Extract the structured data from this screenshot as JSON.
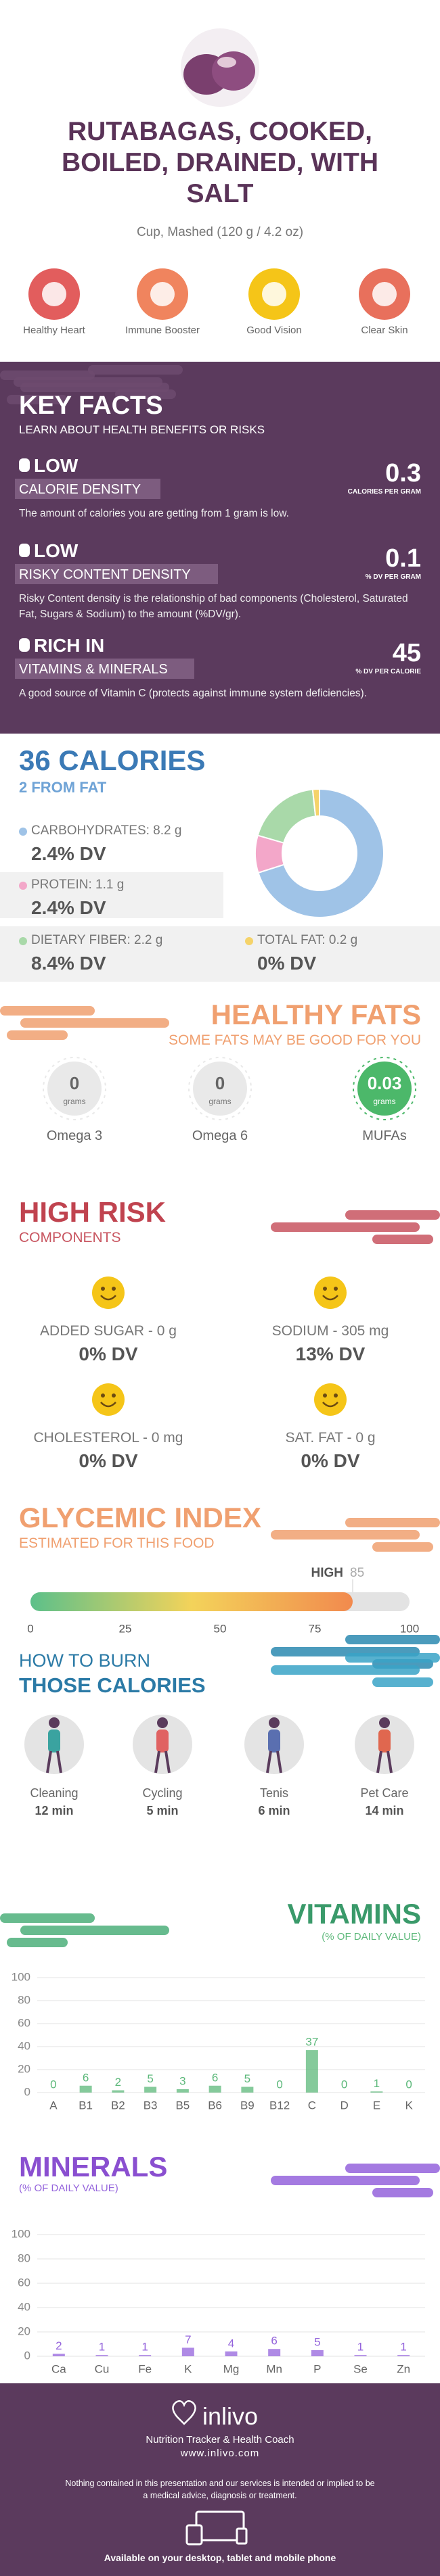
{
  "header": {
    "title": "RUTABAGAS, COOKED, BOILED, DRAINED, WITH SALT",
    "serving": "Cup, Mashed (120 g / 4.2 oz)"
  },
  "benefits": [
    "Healthy Heart",
    "Immune Booster",
    "Good Vision",
    "Clear Skin"
  ],
  "key_facts": {
    "title": "KEY FACTS",
    "subtitle": "LEARN ABOUT HEALTH BENEFITS OR RISKS",
    "items": [
      {
        "level": "LOW",
        "name": "CALORIE DENSITY",
        "value": 0.3,
        "unit": "CALORIES PER GRAM",
        "text": "The amount of calories you are getting from 1 gram is low."
      },
      {
        "level": "LOW",
        "name": "RISKY CONTENT DENSITY",
        "value": 0.1,
        "unit": "% DV PER GRAM",
        "text": "Risky Content density is the relationship of bad components (Cholesterol, Saturated Fat, Sugars & Sodium) to the amount (%DV/gr)."
      },
      {
        "level": "RICH IN",
        "name": "VITAMINS & MINERALS",
        "value": 45,
        "unit": "% DV PER CALORIE",
        "text": "A good source of Vitamin C (protects against immune system deficiencies)."
      }
    ]
  },
  "calories": {
    "title": "36 CALORIES",
    "subtitle": "2 FROM FAT",
    "type": "donut",
    "items": [
      {
        "label": "CARBOHYDRATES: 8.2 g",
        "value": 8.2,
        "dv": "2.4% DV",
        "color": "#9fc3e7"
      },
      {
        "label": "PROTEIN: 1.1 g",
        "value": 1.1,
        "dv": "2.4% DV",
        "color": "#f3a7c9"
      },
      {
        "label": "DIETARY FIBER: 2.2 g",
        "value": 2.2,
        "dv": "8.4% DV",
        "color": "#a9d9a9"
      },
      {
        "label": "TOTAL FAT: 0.2 g",
        "value": 0.2,
        "dv": "0% DV",
        "color": "#f5d36a"
      }
    ]
  },
  "healthy_fats": {
    "title": "HEALTHY FATS",
    "subtitle": "SOME FATS MAY BE GOOD FOR YOU",
    "unit": "grams",
    "items": [
      {
        "name": "Omega 3",
        "value": 0
      },
      {
        "name": "Omega 6",
        "value": 0
      },
      {
        "name": "MUFAs",
        "value": 0.03
      }
    ]
  },
  "high_risk": {
    "title": "HIGH RISK",
    "subtitle": "COMPONENTS",
    "items": [
      {
        "label": "ADDED SUGAR - 0 g",
        "dv": "0% DV"
      },
      {
        "label": "SODIUM - 305 mg",
        "dv": "13% DV"
      },
      {
        "label": "CHOLESTEROL - 0 mg",
        "dv": "0% DV"
      },
      {
        "label": "SAT. FAT - 0 g",
        "dv": "0% DV"
      }
    ]
  },
  "glycemic_index": {
    "title": "GLYCEMIC INDEX",
    "subtitle": "ESTIMATED FOR THIS FOOD",
    "level": "HIGH",
    "value": 85,
    "xlim": [
      0,
      100
    ],
    "xticks": [
      0,
      25,
      50,
      75,
      100
    ]
  },
  "burn": {
    "title": "HOW TO BURN",
    "subtitle": "THOSE CALORIES",
    "activities": [
      {
        "name": "Cleaning",
        "time": "12 min"
      },
      {
        "name": "Cycling",
        "time": "5 min"
      },
      {
        "name": "Tenis",
        "time": "6 min"
      },
      {
        "name": "Pet Care",
        "time": "14 min"
      }
    ]
  },
  "vitamins": {
    "title": "VITAMINS",
    "subtitle": "(% OF DAILY VALUE)",
    "type": "bar",
    "categories": [
      "A",
      "B1",
      "B2",
      "B3",
      "B5",
      "B6",
      "B9",
      "B12",
      "C",
      "D",
      "E",
      "K"
    ],
    "values": [
      0,
      6,
      2,
      5,
      3,
      6,
      5,
      0,
      37,
      0,
      1,
      0
    ],
    "color": "#5cb87a",
    "ylim": [
      0,
      100
    ],
    "yticks": [
      0,
      20,
      40,
      60,
      80,
      100
    ],
    "grid": true
  },
  "minerals": {
    "title": "MINERALS",
    "subtitle": "(% OF DAILY VALUE)",
    "type": "bar",
    "categories": [
      "Ca",
      "Cu",
      "Fe",
      "K",
      "Mg",
      "Mn",
      "P",
      "Se",
      "Zn"
    ],
    "values": [
      2,
      1,
      1,
      7,
      4,
      6,
      5,
      1,
      1
    ],
    "color": "#9463dc",
    "ylim": [
      0,
      100
    ],
    "yticks": [
      0,
      20,
      40,
      60,
      80,
      100
    ],
    "grid": true
  },
  "footer": {
    "brand": "inlivo",
    "tagline": "Nutrition Tracker & Health Coach",
    "url": "www.inlivo.com",
    "disclaimer": "Nothing contained in this presentation and our services is intended or implied to be a medical advice, diagnosis or treatment.",
    "available": "Available on your desktop, tablet and mobile phone"
  }
}
